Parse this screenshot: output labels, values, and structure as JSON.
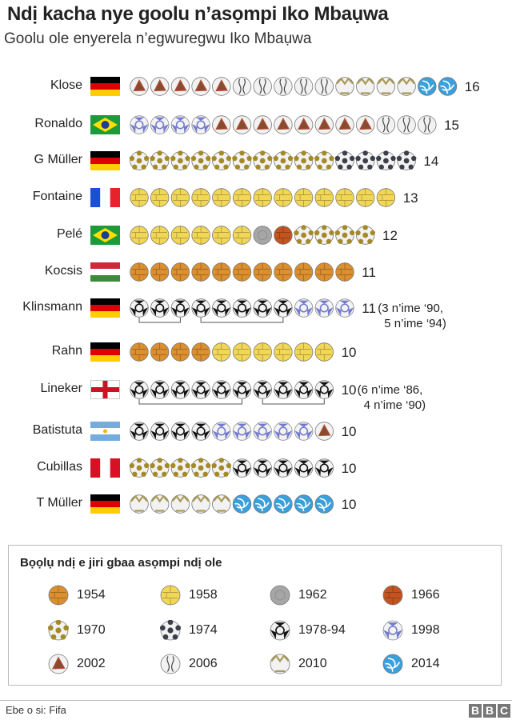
{
  "title": "Ndị kacha nye goolu n’asọmpi Iko Mbaụwa",
  "subtitle": "Goolu ole enyerela n’egwuregwu Iko Mbaụwa",
  "chart_data": {
    "type": "pictogram",
    "players": [
      {
        "name": "Klose",
        "flag": "germany",
        "total": 16,
        "balls": [
          [
            "2002",
            5
          ],
          [
            "2006",
            5
          ],
          [
            "2010",
            4
          ],
          [
            "2014",
            2
          ]
        ]
      },
      {
        "name": "Ronaldo",
        "flag": "brazil",
        "total": 15,
        "balls": [
          [
            "1998",
            4
          ],
          [
            "2002",
            8
          ],
          [
            "2006",
            3
          ]
        ]
      },
      {
        "name": "G Müller",
        "flag": "germany",
        "total": 14,
        "balls": [
          [
            "1970",
            10
          ],
          [
            "1974",
            4
          ]
        ]
      },
      {
        "name": "Fontaine",
        "flag": "france",
        "total": 13,
        "balls": [
          [
            "1958",
            13
          ]
        ]
      },
      {
        "name": "Pelé",
        "flag": "brazil",
        "total": 12,
        "balls": [
          [
            "1958",
            6
          ],
          [
            "1962",
            1
          ],
          [
            "1966",
            1
          ],
          [
            "1970",
            4
          ]
        ]
      },
      {
        "name": "Kocsis",
        "flag": "hungary",
        "total": 11,
        "balls": [
          [
            "1954",
            11
          ]
        ]
      },
      {
        "name": "Klinsmann",
        "flag": "germany",
        "total": 11,
        "balls": [
          [
            "1978-94",
            8
          ],
          [
            "1998",
            3
          ]
        ],
        "note": [
          "(3 n’ime ‘90,",
          "5 n’ime ‘94)"
        ],
        "groups": [
          3,
          5
        ]
      },
      {
        "name": "Rahn",
        "flag": "germany",
        "total": 10,
        "balls": [
          [
            "1954",
            4
          ],
          [
            "1958",
            6
          ]
        ]
      },
      {
        "name": "Lineker",
        "flag": "england",
        "total": 10,
        "balls": [
          [
            "1978-94",
            10
          ]
        ],
        "note": [
          "(6 n’ime ‘86,",
          "4 n’ime ‘90)"
        ],
        "groups": [
          6,
          4
        ]
      },
      {
        "name": "Batistuta",
        "flag": "argentina",
        "total": 10,
        "balls": [
          [
            "1978-94",
            4
          ],
          [
            "1998",
            5
          ],
          [
            "2002",
            1
          ]
        ]
      },
      {
        "name": "Cubillas",
        "flag": "peru",
        "total": 10,
        "balls": [
          [
            "1970",
            5
          ],
          [
            "1978-94",
            5
          ]
        ]
      },
      {
        "name": "T Müller",
        "flag": "germany",
        "total": 10,
        "balls": [
          [
            "2010",
            5
          ],
          [
            "2014",
            5
          ]
        ]
      }
    ],
    "legend_title": "Bọọlụ ndị e jiri gbaa asọmpi ndị ole",
    "legend": [
      "1954",
      "1958",
      "1962",
      "1966",
      "1970",
      "1974",
      "1978-94",
      "1998",
      "2002",
      "2006",
      "2010",
      "2014"
    ],
    "ball_colors": {
      "1954": "#dc8f2e",
      "1958": "#f2d756",
      "1962": "#a6a6a6",
      "1966": "#c4541f",
      "1970": "#a48a26",
      "1974": "#3a3f4a",
      "1978-94": "#111111",
      "1998": "#5b66c4",
      "2002": "#8a4a30",
      "2006": "#444444",
      "2010": "#a89a5a",
      "2014": "#3aa0dc"
    }
  },
  "source": "Ebe o si: Fifa",
  "logo": "BBC"
}
